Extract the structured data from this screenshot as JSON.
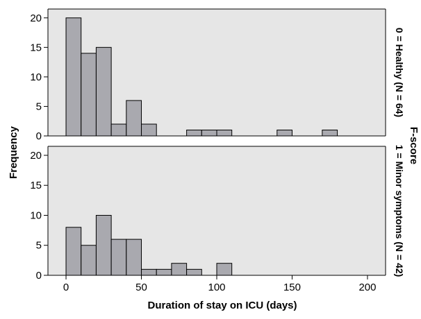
{
  "chart_data": {
    "type": "bar",
    "subtype": "histogram-faceted",
    "xlabel": "Duration of stay on ICU (days)",
    "ylabel": "Frequency",
    "facet_title": "F-score",
    "xlim": [
      -12,
      212
    ],
    "ylim": [
      0,
      21.5
    ],
    "xticks": [
      "0",
      "50",
      "100",
      "150",
      "200"
    ],
    "xtick_values": [
      0,
      50,
      100,
      150,
      200
    ],
    "yticks": [
      "0",
      "5",
      "10",
      "15",
      "20"
    ],
    "ytick_values": [
      0,
      5,
      10,
      15,
      20
    ],
    "bin_width": 10,
    "bin_starts": [
      0,
      10,
      20,
      30,
      40,
      50,
      60,
      70,
      80,
      90,
      100,
      110,
      120,
      130,
      140,
      150,
      160,
      170
    ],
    "panels": [
      {
        "label": "0 = Healthy (N = 64)",
        "values": [
          20,
          14,
          15,
          2,
          6,
          2,
          0,
          0,
          1,
          1,
          1,
          0,
          0,
          0,
          1,
          0,
          0,
          1
        ]
      },
      {
        "label": "1 = Minor symptoms (N = 42)",
        "values": [
          8,
          5,
          10,
          6,
          6,
          1,
          1,
          2,
          1,
          0,
          2,
          0,
          0,
          0,
          0,
          0,
          0,
          0
        ]
      }
    ],
    "colors": {
      "panel_bg": "#e6e6e6",
      "bar_fill": "#a9a9af",
      "bar_stroke": "#000000",
      "axis": "#000000"
    },
    "grid": false,
    "legend": "none"
  }
}
